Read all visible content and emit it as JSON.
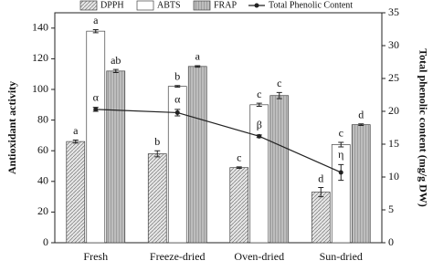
{
  "chart_data": {
    "type": "bar",
    "categories": [
      "Fresh",
      "Freeze-dried",
      "Oven-dried",
      "Sun-dried"
    ],
    "y_label": "Antioxidant activity",
    "y2_label": "Total phenolic content (mg/g DW)",
    "ylim": [
      0,
      150
    ],
    "yticks": [
      0,
      20,
      40,
      60,
      80,
      100,
      120,
      140
    ],
    "y2lim": [
      0,
      35
    ],
    "y2ticks": [
      0,
      5,
      10,
      15,
      20,
      25,
      30,
      35
    ],
    "series": [
      {
        "name": "DPPH",
        "color": "#e6e6e6",
        "pattern": "diagonal",
        "values": [
          66,
          58,
          49,
          33
        ],
        "errors": [
          1,
          2,
          0.5,
          3
        ],
        "letters": [
          "a",
          "b",
          "c",
          "d"
        ]
      },
      {
        "name": "ABTS",
        "color": "#ffffff",
        "pattern": "none",
        "values": [
          138,
          102,
          90,
          64
        ],
        "errors": [
          1,
          0.5,
          1,
          1.5
        ],
        "letters": [
          "a",
          "b",
          "c",
          "c"
        ]
      },
      {
        "name": "FRAP",
        "color": "#bdbdbd",
        "pattern": "vertical",
        "values": [
          112,
          115,
          96,
          77
        ],
        "errors": [
          1,
          0.5,
          2,
          0.5
        ],
        "letters": [
          "ab",
          "a",
          "c",
          "d"
        ]
      },
      {
        "name": "Total Phenolic Content",
        "type": "line",
        "axis": "y2",
        "color": "#222222",
        "values": [
          20.3,
          19.8,
          16.2,
          10.7
        ],
        "errors": [
          0.3,
          0.5,
          0.2,
          1.2
        ],
        "letters": [
          "α",
          "α",
          "β",
          "η"
        ]
      }
    ]
  }
}
